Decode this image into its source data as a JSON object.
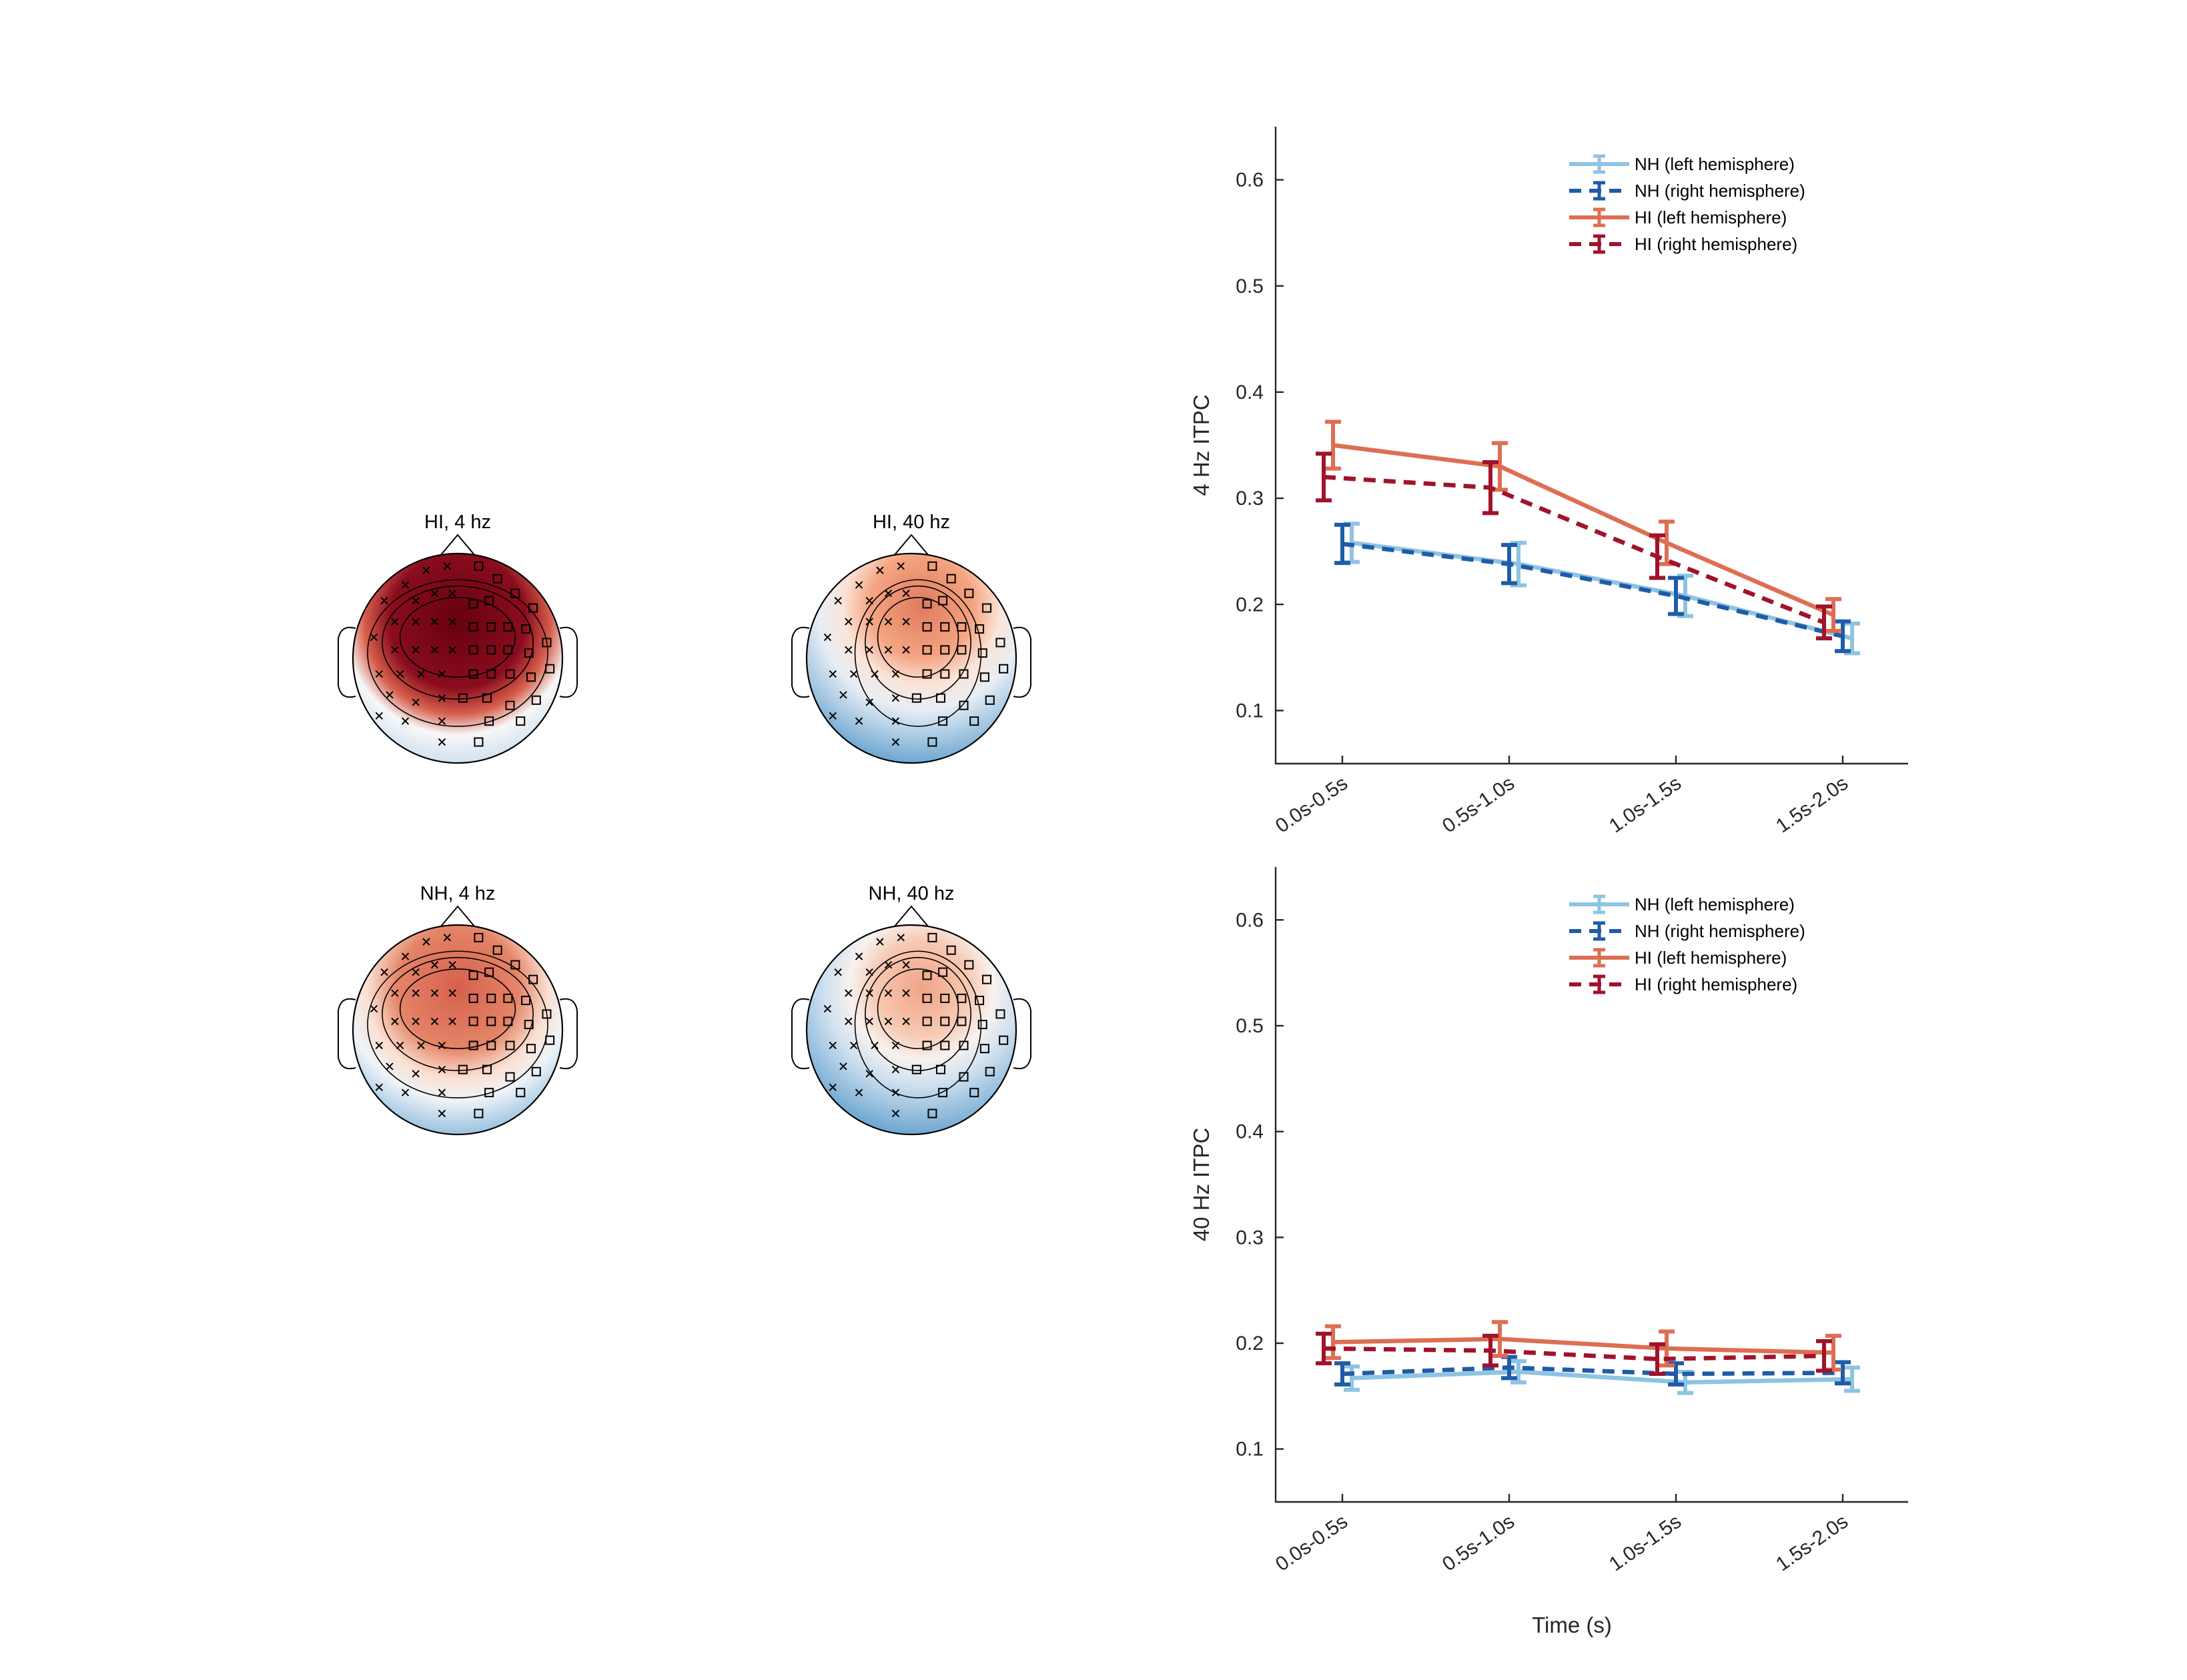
{
  "colors": {
    "nh_left": "#8ec3e3",
    "nh_right": "#1f5ca8",
    "hi_left": "#de6e52",
    "hi_right": "#a0132b"
  },
  "topomaps": [
    {
      "title": "HI, 4 hz",
      "level": "very high frontal"
    },
    {
      "title": "HI, 40 hz",
      "level": "moderate frontal"
    },
    {
      "title": "NH, 4 hz",
      "level": "high frontal"
    },
    {
      "title": "NH, 40 hz",
      "level": "moderate frontal"
    }
  ],
  "chart_data": [
    {
      "type": "line",
      "categories": [
        "0.0s-0.5s",
        "0.5s-1.0s",
        "1.0s-1.5s",
        "1.5s-2.0s"
      ],
      "ylabel": "4 Hz ITPC",
      "xlabel": "",
      "ylim": [
        0.05,
        0.65
      ],
      "yticks": [
        "0.1",
        "0.2",
        "0.3",
        "0.4",
        "0.5",
        "0.6"
      ],
      "legend_position": "top-right",
      "series": [
        {
          "name": "NH (left hemisphere)",
          "style": "solid",
          "values": [
            0.258,
            0.238,
            0.208,
            0.168
          ],
          "errors": [
            0.018,
            0.02,
            0.019,
            0.014
          ]
        },
        {
          "name": "NH (right hemisphere)",
          "style": "dashed",
          "values": [
            0.257,
            0.238,
            0.208,
            0.17
          ],
          "errors": [
            0.018,
            0.018,
            0.017,
            0.014
          ]
        },
        {
          "name": "HI (left hemisphere)",
          "style": "solid",
          "values": [
            0.35,
            0.33,
            0.258,
            0.19
          ],
          "errors": [
            0.022,
            0.022,
            0.02,
            0.015
          ]
        },
        {
          "name": "HI (right hemisphere)",
          "style": "dashed",
          "values": [
            0.32,
            0.31,
            0.245,
            0.183
          ],
          "errors": [
            0.022,
            0.024,
            0.02,
            0.015
          ]
        }
      ]
    },
    {
      "type": "line",
      "categories": [
        "0.0s-0.5s",
        "0.5s-1.0s",
        "1.0s-1.5s",
        "1.5s-2.0s"
      ],
      "ylabel": "40 Hz ITPC",
      "xlabel": "Time (s)",
      "ylim": [
        0.05,
        0.65
      ],
      "yticks": [
        "0.1",
        "0.2",
        "0.3",
        "0.4",
        "0.5",
        "0.6"
      ],
      "legend_position": "top-right",
      "series": [
        {
          "name": "NH (left hemisphere)",
          "style": "solid",
          "values": [
            0.167,
            0.173,
            0.163,
            0.166
          ],
          "errors": [
            0.011,
            0.01,
            0.01,
            0.011
          ]
        },
        {
          "name": "NH (right hemisphere)",
          "style": "dashed",
          "values": [
            0.171,
            0.177,
            0.171,
            0.172
          ],
          "errors": [
            0.01,
            0.01,
            0.01,
            0.01
          ]
        },
        {
          "name": "HI (left hemisphere)",
          "style": "solid",
          "values": [
            0.201,
            0.204,
            0.195,
            0.191
          ],
          "errors": [
            0.015,
            0.016,
            0.016,
            0.016
          ]
        },
        {
          "name": "HI (right hemisphere)",
          "style": "dashed",
          "values": [
            0.195,
            0.193,
            0.185,
            0.188
          ],
          "errors": [
            0.014,
            0.014,
            0.014,
            0.014
          ]
        }
      ]
    }
  ]
}
